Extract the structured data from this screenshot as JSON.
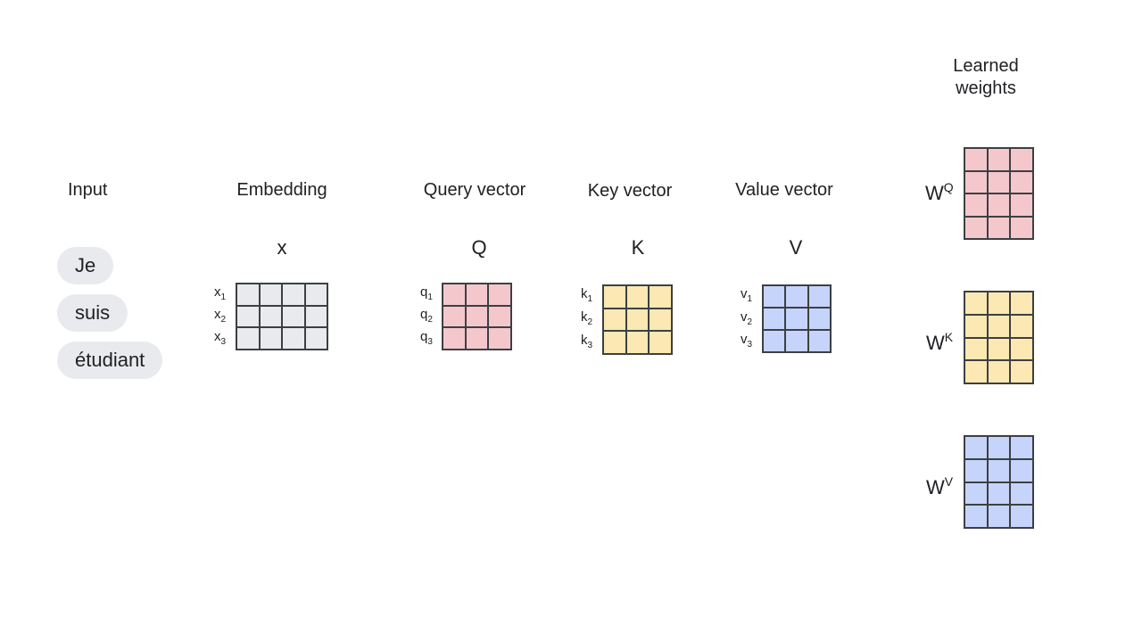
{
  "headings": {
    "input": "Input",
    "embedding": "Embedding",
    "query": "Query vector",
    "key": "Key vector",
    "value": "Value vector",
    "learned_weights": "Learned\nweights"
  },
  "symbols": {
    "embedding": "x",
    "query": "Q",
    "key": "K",
    "value": "V"
  },
  "tokens": [
    "Je",
    "suis",
    "étudiant"
  ],
  "row_labels": {
    "embedding": {
      "base": "x",
      "subs": [
        "1",
        "2",
        "3"
      ]
    },
    "query": {
      "base": "q",
      "subs": [
        "1",
        "2",
        "3"
      ]
    },
    "key": {
      "base": "k",
      "subs": [
        "1",
        "2",
        "3"
      ]
    },
    "value": {
      "base": "v",
      "subs": [
        "1",
        "2",
        "3"
      ]
    }
  },
  "weights": [
    {
      "base": "W",
      "sup": "Q"
    },
    {
      "base": "W",
      "sup": "K"
    },
    {
      "base": "W",
      "sup": "V"
    }
  ],
  "colors": {
    "embedding": "#e8eaed",
    "query": "#f4c7cd",
    "key": "#fce8b2",
    "value": "#c6d4fb"
  }
}
